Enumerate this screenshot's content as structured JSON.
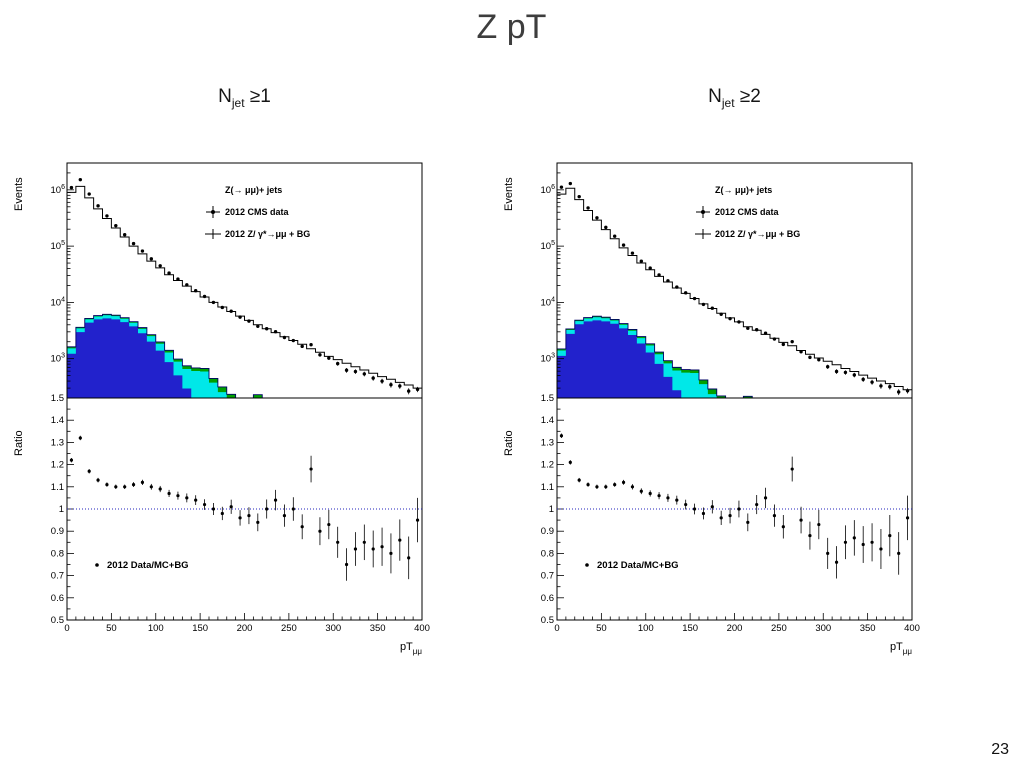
{
  "slide": {
    "title": "Z pT",
    "page_number": "23"
  },
  "panels": [
    {
      "header": {
        "prefix": "N",
        "sub": "jet",
        "suffix": " ≥1"
      }
    },
    {
      "header": {
        "prefix": "N",
        "sub": "jet",
        "suffix": " ≥2"
      }
    }
  ],
  "chart_data": [
    {
      "type": "bar",
      "subtype": "stacked-log-histogram-with-ratio",
      "title": "N_jet >= 1",
      "x_max": 400,
      "bin_width": 10,
      "x_ticks": [
        0,
        50,
        100,
        150,
        200,
        250,
        300,
        350,
        400
      ],
      "x_label": {
        "base": "pT",
        "sub": "μμ"
      },
      "y_axis": {
        "label": "Events",
        "scale": "log",
        "min": 200,
        "max": 3000000,
        "tick_exponents": [
          3,
          4,
          5,
          6
        ]
      },
      "ratio_axis": {
        "label": "Ratio",
        "min": 0.5,
        "max": 1.5,
        "ticks": [
          0.5,
          0.6,
          0.7,
          0.8,
          0.9,
          1.0,
          1.1,
          1.2,
          1.3,
          1.4,
          1.5
        ]
      },
      "legend": {
        "header": "Z(→ μμ)+ jets",
        "data_label": "2012 CMS data",
        "mc_label": "2012 Z/ γ*→μμ + BG"
      },
      "ratio_legend": "2012 Data/MC+BG",
      "ratio_line_color": "#2222bb",
      "stack_outline_color": "#000066",
      "mc_total": [
        900000,
        1150000,
        720000,
        460000,
        310000,
        210000,
        145000,
        100000,
        73000,
        54000,
        41000,
        31000,
        24500,
        19500,
        15500,
        12500,
        10000,
        8300,
        6900,
        5700,
        4800,
        4000,
        3400,
        2900,
        2450,
        2100,
        1800,
        1500,
        1300,
        1100,
        960,
        830,
        720,
        630,
        550,
        480,
        430,
        380,
        340,
        300
      ],
      "ratio": [
        1.22,
        1.32,
        1.17,
        1.13,
        1.11,
        1.1,
        1.1,
        1.11,
        1.12,
        1.1,
        1.09,
        1.07,
        1.06,
        1.05,
        1.04,
        1.02,
        1.0,
        0.98,
        1.01,
        0.96,
        0.97,
        0.94,
        1.0,
        1.04,
        0.97,
        1.0,
        0.92,
        1.18,
        0.9,
        0.93,
        0.85,
        0.75,
        0.82,
        0.85,
        0.82,
        0.83,
        0.8,
        0.86,
        0.78,
        0.95
      ],
      "ratio_err": [
        0.01,
        0.01,
        0.01,
        0.01,
        0.01,
        0.01,
        0.01,
        0.011,
        0.012,
        0.013,
        0.014,
        0.016,
        0.018,
        0.02,
        0.022,
        0.024,
        0.027,
        0.03,
        0.032,
        0.035,
        0.038,
        0.04,
        0.043,
        0.046,
        0.05,
        0.053,
        0.056,
        0.06,
        0.063,
        0.066,
        0.07,
        0.073,
        0.076,
        0.08,
        0.083,
        0.086,
        0.09,
        0.093,
        0.096,
        0.1
      ],
      "stack": [
        {
          "name": "background-darkred",
          "color": "#990000",
          "values": [
            120,
            160,
            180,
            190,
            200,
            190,
            170,
            150,
            130,
            110,
            90,
            70,
            55,
            45,
            35,
            30,
            25,
            20,
            15,
            12,
            10,
            8,
            6,
            5,
            4,
            3,
            3,
            2,
            2,
            2,
            1,
            1,
            1,
            1,
            1,
            0,
            0,
            0,
            0,
            0
          ]
        },
        {
          "name": "background-blue",
          "color": "#2222cc",
          "values": [
            1100,
            2800,
            4200,
            4800,
            5000,
            4800,
            4300,
            3600,
            2700,
            1900,
            1300,
            800,
            450,
            250,
            120,
            60,
            30,
            15,
            8,
            4,
            2,
            1,
            0,
            0,
            0,
            0,
            0,
            0,
            0,
            0,
            0,
            0,
            0,
            0,
            0,
            0,
            0,
            0,
            0,
            0
          ]
        },
        {
          "name": "background-cyan",
          "color": "#00e8e8",
          "values": [
            300,
            500,
            600,
            620,
            700,
            700,
            650,
            600,
            550,
            500,
            450,
            420,
            380,
            360,
            450,
            500,
            320,
            220,
            160,
            130,
            110,
            160,
            20,
            140,
            30,
            20,
            120,
            10,
            10,
            60,
            5,
            5,
            5,
            5,
            40,
            5,
            5,
            5,
            5,
            5
          ]
        },
        {
          "name": "background-green",
          "color": "#00a000",
          "values": [
            100,
            150,
            200,
            220,
            250,
            240,
            220,
            200,
            180,
            160,
            140,
            120,
            100,
            90,
            80,
            80,
            70,
            60,
            50,
            50,
            40,
            60,
            10,
            50,
            10,
            10,
            40,
            5,
            5,
            20,
            2,
            2,
            2,
            2,
            15,
            2,
            2,
            2,
            2,
            2
          ]
        }
      ]
    },
    {
      "type": "bar",
      "subtype": "stacked-log-histogram-with-ratio",
      "title": "N_jet >= 2",
      "x_max": 400,
      "bin_width": 10,
      "x_ticks": [
        0,
        50,
        100,
        150,
        200,
        250,
        300,
        350,
        400
      ],
      "x_label": {
        "base": "pT",
        "sub": "μμ"
      },
      "y_axis": {
        "label": "Events",
        "scale": "log",
        "min": 200,
        "max": 3000000,
        "tick_exponents": [
          3,
          4,
          5,
          6
        ]
      },
      "ratio_axis": {
        "label": "Ratio",
        "min": 0.5,
        "max": 1.5,
        "ticks": [
          0.5,
          0.6,
          0.7,
          0.8,
          0.9,
          1.0,
          1.1,
          1.2,
          1.3,
          1.4,
          1.5
        ]
      },
      "legend": {
        "header": "Z(→ μμ)+ jets",
        "data_label": "2012 CMS data",
        "mc_label": "2012 Z/ γ*→μμ + BG"
      },
      "ratio_legend": "2012 Data/MC+BG",
      "ratio_line_color": "#2222bb",
      "stack_outline_color": "#000066",
      "mc_total": [
        840000,
        1070000,
        670000,
        430000,
        290000,
        196000,
        135000,
        93000,
        68000,
        50000,
        38000,
        29000,
        23000,
        18000,
        14500,
        11700,
        9400,
        7800,
        6400,
        5300,
        4500,
        3700,
        3200,
        2700,
        2300,
        1950,
        1700,
        1400,
        1200,
        1030,
        900,
        780,
        670,
        590,
        510,
        450,
        400,
        360,
        320,
        280
      ],
      "ratio": [
        1.33,
        1.21,
        1.13,
        1.11,
        1.1,
        1.1,
        1.11,
        1.12,
        1.1,
        1.08,
        1.07,
        1.06,
        1.05,
        1.04,
        1.02,
        1.0,
        0.98,
        1.01,
        0.96,
        0.97,
        1.0,
        0.94,
        1.02,
        1.05,
        0.97,
        0.92,
        1.18,
        0.95,
        0.88,
        0.93,
        0.8,
        0.76,
        0.85,
        0.87,
        0.84,
        0.85,
        0.82,
        0.88,
        0.8,
        0.96
      ],
      "ratio_err": [
        0.01,
        0.01,
        0.01,
        0.01,
        0.01,
        0.01,
        0.01,
        0.011,
        0.012,
        0.013,
        0.014,
        0.016,
        0.018,
        0.02,
        0.022,
        0.024,
        0.027,
        0.03,
        0.032,
        0.035,
        0.038,
        0.04,
        0.043,
        0.046,
        0.05,
        0.053,
        0.056,
        0.06,
        0.063,
        0.066,
        0.07,
        0.073,
        0.076,
        0.08,
        0.083,
        0.086,
        0.09,
        0.093,
        0.096,
        0.1
      ],
      "stack": [
        {
          "name": "background-darkred",
          "color": "#990000",
          "values": [
            120,
            160,
            180,
            190,
            200,
            190,
            170,
            150,
            130,
            110,
            90,
            70,
            55,
            45,
            35,
            30,
            25,
            20,
            15,
            12,
            10,
            8,
            6,
            5,
            4,
            3,
            3,
            2,
            2,
            2,
            1,
            1,
            1,
            1,
            1,
            0,
            0,
            0,
            0,
            0
          ]
        },
        {
          "name": "background-blue",
          "color": "#2222cc",
          "values": [
            1000,
            2600,
            3900,
            4400,
            4600,
            4400,
            4000,
            3300,
            2500,
            1750,
            1200,
            740,
            420,
            230,
            110,
            55,
            28,
            14,
            7,
            4,
            2,
            1,
            0,
            0,
            0,
            0,
            0,
            0,
            0,
            0,
            0,
            0,
            0,
            0,
            0,
            0,
            0,
            0,
            0,
            0
          ]
        },
        {
          "name": "background-cyan",
          "color": "#00e8e8",
          "values": [
            280,
            470,
            560,
            580,
            650,
            650,
            600,
            560,
            510,
            460,
            420,
            390,
            350,
            340,
            420,
            470,
            300,
            200,
            150,
            120,
            100,
            150,
            18,
            130,
            28,
            18,
            110,
            9,
            9,
            55,
            5,
            5,
            5,
            5,
            35,
            5,
            5,
            5,
            5,
            5
          ]
        },
        {
          "name": "background-green",
          "color": "#00a000",
          "values": [
            90,
            140,
            190,
            200,
            230,
            220,
            200,
            190,
            170,
            150,
            130,
            110,
            95,
            85,
            75,
            75,
            65,
            55,
            46,
            46,
            37,
            55,
            9,
            46,
            9,
            9,
            37,
            5,
            5,
            18,
            2,
            2,
            2,
            2,
            14,
            2,
            2,
            2,
            2,
            2
          ]
        }
      ]
    }
  ]
}
